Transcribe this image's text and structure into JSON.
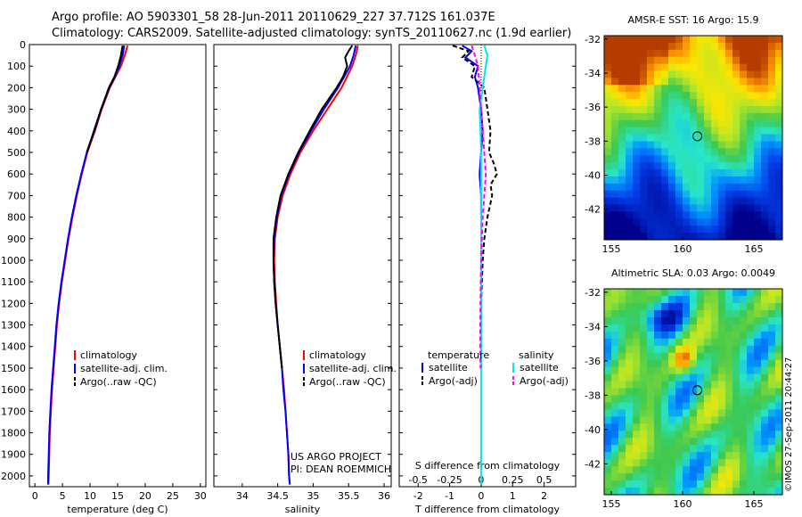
{
  "header": {
    "line1": "Argo profile: AO 5903301_58 28-Jun-2011 20110629_227 37.712S 161.037E",
    "line2": "Climatology: CARS2009. Satellite-adjusted climatology: synTS_20110627.nc (1.9d earlier)"
  },
  "side_label": "©IMOS 27-Sep-2011 20:44:27",
  "colors": {
    "climatology": "#ff0000",
    "satellite": "#0000ff",
    "argo": "#000000",
    "s_satellite": "#00e5ee",
    "s_argo": "#ff00ff"
  },
  "chart_data": [
    {
      "type": "line",
      "panel": "temperature",
      "xlabel": "temperature (deg C)",
      "ylabel": "",
      "xlim": [
        -1,
        31
      ],
      "ylim": [
        2050,
        0
      ],
      "xticks": [
        "0",
        "5",
        "10",
        "15",
        "20",
        "25",
        "30"
      ],
      "xtick_values": [
        0,
        5,
        10,
        15,
        20,
        25,
        30
      ],
      "yticks": [
        "0",
        "100",
        "200",
        "300",
        "400",
        "500",
        "600",
        "700",
        "800",
        "900",
        "1000",
        "1100",
        "1200",
        "1300",
        "1400",
        "1500",
        "1600",
        "1700",
        "1800",
        "1900",
        "2000"
      ],
      "ytick_values": [
        0,
        100,
        200,
        300,
        400,
        500,
        600,
        700,
        800,
        900,
        1000,
        1100,
        1200,
        1300,
        1400,
        1500,
        1600,
        1700,
        1800,
        1900,
        2000
      ],
      "legend": [
        "climatology",
        "satellite-adj. clim.",
        "Argo(..raw -QC)"
      ],
      "series": [
        {
          "name": "climatology",
          "color": "#ff0000",
          "depth": [
            5,
            50,
            100,
            150,
            200,
            300,
            400,
            500,
            600,
            700,
            800,
            900,
            1000,
            1100,
            1200,
            1300,
            1400,
            1500,
            1600,
            1700,
            1800,
            1900,
            2000,
            2040
          ],
          "values": [
            16.8,
            16.3,
            15.6,
            14.6,
            13.6,
            12.1,
            10.9,
            9.5,
            8.5,
            7.6,
            6.8,
            6.1,
            5.5,
            4.9,
            4.4,
            4.0,
            3.7,
            3.4,
            3.1,
            2.9,
            2.7,
            2.6,
            2.5,
            2.45
          ]
        },
        {
          "name": "satellite-adj. clim.",
          "color": "#0000ff",
          "depth": [
            5,
            50,
            100,
            150,
            200,
            300,
            400,
            500,
            600,
            700,
            800,
            900,
            1000,
            1100,
            1200,
            1300,
            1400,
            1500,
            1600,
            1700,
            1800,
            1900,
            2000,
            2040
          ],
          "values": [
            16.2,
            15.9,
            15.3,
            14.5,
            13.5,
            12.0,
            10.8,
            9.4,
            8.4,
            7.5,
            6.7,
            6.0,
            5.4,
            4.8,
            4.3,
            3.9,
            3.6,
            3.3,
            3.0,
            2.8,
            2.6,
            2.5,
            2.4,
            2.4
          ]
        },
        {
          "name": "Argo(..raw -QC)",
          "color": "#000000",
          "depth": [
            5,
            50,
            100,
            150,
            200,
            300,
            400,
            500
          ],
          "values": [
            15.9,
            15.6,
            15.1,
            14.4,
            13.4,
            12.0,
            10.7,
            9.4
          ]
        }
      ]
    },
    {
      "type": "line",
      "panel": "salinity",
      "xlabel": "salinity",
      "xlim": [
        33.6,
        36.1
      ],
      "ylim": [
        2050,
        0
      ],
      "xticks": [
        "34",
        "34.5",
        "35",
        "35.5",
        "36"
      ],
      "xtick_values": [
        34,
        34.5,
        35,
        35.5,
        36
      ],
      "legend": [
        "climatology",
        "satellite-adj. clim.",
        "Argo(..raw -QC)"
      ],
      "annotations": [
        "US ARGO PROJECT",
        "PI: DEAN ROEMMICH"
      ],
      "series": [
        {
          "name": "climatology",
          "color": "#ff0000",
          "depth": [
            5,
            50,
            100,
            200,
            300,
            400,
            500,
            600,
            700,
            800,
            900,
            1000,
            1100,
            1200,
            1300,
            1400,
            1500,
            1600,
            1700,
            1800,
            1900,
            2000,
            2040
          ],
          "values": [
            35.63,
            35.6,
            35.55,
            35.4,
            35.2,
            35.0,
            34.82,
            34.68,
            34.57,
            34.5,
            34.46,
            34.45,
            34.46,
            34.48,
            34.5,
            34.53,
            34.56,
            34.59,
            34.61,
            34.63,
            34.65,
            34.66,
            34.67
          ]
        },
        {
          "name": "satellite-adj. clim.",
          "color": "#0000ff",
          "depth": [
            5,
            50,
            100,
            200,
            300,
            400,
            500,
            600,
            700,
            800,
            900,
            1000,
            1100,
            1200,
            1300,
            1400,
            1500,
            1600,
            1700,
            1800,
            1900,
            2000,
            2040
          ],
          "values": [
            35.6,
            35.57,
            35.52,
            35.35,
            35.15,
            34.97,
            34.8,
            34.66,
            34.55,
            34.49,
            34.45,
            34.44,
            34.45,
            34.47,
            34.5,
            34.53,
            34.56,
            34.58,
            34.61,
            34.63,
            34.65,
            34.66,
            34.67
          ]
        },
        {
          "name": "Argo(..raw -QC)",
          "color": "#000000",
          "depth": [
            5,
            30,
            60,
            100,
            150,
            200,
            300,
            400,
            500,
            600,
            700,
            800,
            900,
            1000,
            1100,
            1200,
            1300,
            1400,
            1500
          ],
          "values": [
            35.55,
            35.5,
            35.45,
            35.48,
            35.42,
            35.33,
            35.12,
            34.95,
            34.79,
            34.65,
            34.54,
            34.48,
            34.44,
            34.44,
            34.45,
            34.47,
            34.5,
            34.53,
            34.56
          ]
        }
      ]
    },
    {
      "type": "line",
      "panel": "difference",
      "xlabel": "T difference from climatology",
      "xlabel_top": "S difference from climatology",
      "xlim": [
        -2.6,
        3.0
      ],
      "ylim": [
        2050,
        0
      ],
      "xticks": [
        "-2",
        "-1",
        "0",
        "1",
        "2"
      ],
      "xtick_values": [
        -2,
        -1,
        0,
        1,
        2
      ],
      "xticks_top": [
        "-0.5",
        "-0.25",
        "0",
        "0.25",
        "0.5"
      ],
      "xtick_top_values": [
        -0.5,
        -0.25,
        0,
        0.25,
        0.5
      ],
      "legend_titles": [
        "temperature",
        "salinity"
      ],
      "legend": [
        "satellite",
        "Argo(-adj)",
        "satellite",
        "Argo(-adj)"
      ],
      "series": [
        {
          "name": "satellite",
          "color": "#0000ff",
          "depth": [
            5,
            30,
            60,
            100,
            150,
            200,
            300,
            400,
            500,
            600,
            700,
            800
          ],
          "values": [
            -0.6,
            -0.3,
            -0.5,
            -0.1,
            -0.2,
            -0.1,
            0,
            0.05,
            0,
            -0.05,
            0,
            0
          ]
        },
        {
          "name": "Argo(-adj)",
          "color": "#000000",
          "dash": true,
          "depth": [
            5,
            30,
            60,
            100,
            150,
            200,
            300,
            400,
            500,
            550,
            600,
            650,
            700,
            800,
            900,
            1000,
            1200,
            1400,
            1500
          ],
          "values": [
            -0.9,
            -0.4,
            -0.6,
            -0.2,
            -0.3,
            0.1,
            0.2,
            0.3,
            0.25,
            0.4,
            0.5,
            0.3,
            0.35,
            0.2,
            0.1,
            0.05,
            0,
            0,
            0
          ]
        },
        {
          "name": "satellite",
          "color": "#00e5ee",
          "depth": [
            5,
            50,
            100,
            200,
            300,
            400,
            500,
            600,
            800,
            1000,
            1200,
            1500,
            1800,
            2040
          ],
          "values": [
            0.1,
            0.2,
            0.15,
            0.05,
            -0.05,
            -0.02,
            0,
            0,
            0,
            0,
            0,
            0,
            0,
            0
          ]
        },
        {
          "name": "Argo(-adj)",
          "color": "#ff00ff",
          "dash": true,
          "depth": [
            5,
            50,
            100,
            200,
            400,
            600,
            800,
            1000,
            1200,
            1400,
            1500
          ],
          "values": [
            -0.3,
            -0.2,
            -0.1,
            -0.05,
            0.05,
            0.15,
            0.05,
            0,
            -0.02,
            -0.03,
            -0.02
          ]
        }
      ]
    },
    {
      "type": "heatmap",
      "panel": "sst_map",
      "title": "AMSR-E SST: 16 Argo: 15.9",
      "xlim": [
        154.5,
        167
      ],
      "ylim": [
        -43.8,
        -31.8
      ],
      "xticks": [
        "155",
        "160",
        "165"
      ],
      "xtick_values": [
        155,
        160,
        165
      ],
      "yticks": [
        "-32",
        "-34",
        "-36",
        "-38",
        "-40",
        "-42"
      ],
      "ytick_values": [
        -32,
        -34,
        -36,
        -38,
        -40,
        -42
      ],
      "marker": {
        "lon": 161.037,
        "lat": -37.712
      }
    },
    {
      "type": "heatmap",
      "panel": "sla_map",
      "title": "Altimetric SLA: 0.03 Argo: 0.0049",
      "xlim": [
        154.5,
        167
      ],
      "ylim": [
        -43.8,
        -31.8
      ],
      "xticks": [
        "155",
        "160",
        "165"
      ],
      "xtick_values": [
        155,
        160,
        165
      ],
      "yticks": [
        "-32",
        "-34",
        "-36",
        "-38",
        "-40",
        "-42"
      ],
      "ytick_values": [
        -32,
        -34,
        -36,
        -38,
        -40,
        -42
      ],
      "marker": {
        "lon": 161.037,
        "lat": -37.712
      }
    }
  ]
}
